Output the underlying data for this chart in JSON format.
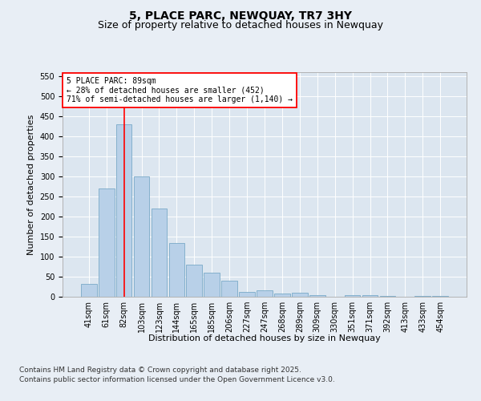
{
  "title": "5, PLACE PARC, NEWQUAY, TR7 3HY",
  "subtitle": "Size of property relative to detached houses in Newquay",
  "xlabel": "Distribution of detached houses by size in Newquay",
  "ylabel": "Number of detached properties",
  "categories": [
    "41sqm",
    "61sqm",
    "82sqm",
    "103sqm",
    "123sqm",
    "144sqm",
    "165sqm",
    "185sqm",
    "206sqm",
    "227sqm",
    "247sqm",
    "268sqm",
    "289sqm",
    "309sqm",
    "330sqm",
    "351sqm",
    "371sqm",
    "392sqm",
    "413sqm",
    "433sqm",
    "454sqm"
  ],
  "values": [
    33,
    270,
    430,
    300,
    220,
    135,
    80,
    60,
    40,
    13,
    16,
    8,
    10,
    5,
    0,
    4,
    5,
    2,
    1,
    2,
    3
  ],
  "bar_color": "#b8d0e8",
  "bar_edge_color": "#7aaac8",
  "bar_linewidth": 0.6,
  "vline_x": 2,
  "vline_color": "red",
  "vline_linewidth": 1.2,
  "annotation_text": "5 PLACE PARC: 89sqm\n← 28% of detached houses are smaller (452)\n71% of semi-detached houses are larger (1,140) →",
  "annotation_fontsize": 7,
  "annotation_box_color": "white",
  "annotation_box_edgecolor": "red",
  "ylim": [
    0,
    560
  ],
  "yticks": [
    0,
    50,
    100,
    150,
    200,
    250,
    300,
    350,
    400,
    450,
    500,
    550
  ],
  "background_color": "#e8eef5",
  "plot_bg_color": "#dce6f0",
  "grid_color": "white",
  "title_fontsize": 10,
  "subtitle_fontsize": 9,
  "xlabel_fontsize": 8,
  "ylabel_fontsize": 8,
  "tick_fontsize": 7,
  "footer1": "Contains HM Land Registry data © Crown copyright and database right 2025.",
  "footer2": "Contains public sector information licensed under the Open Government Licence v3.0.",
  "footer_fontsize": 6.5
}
